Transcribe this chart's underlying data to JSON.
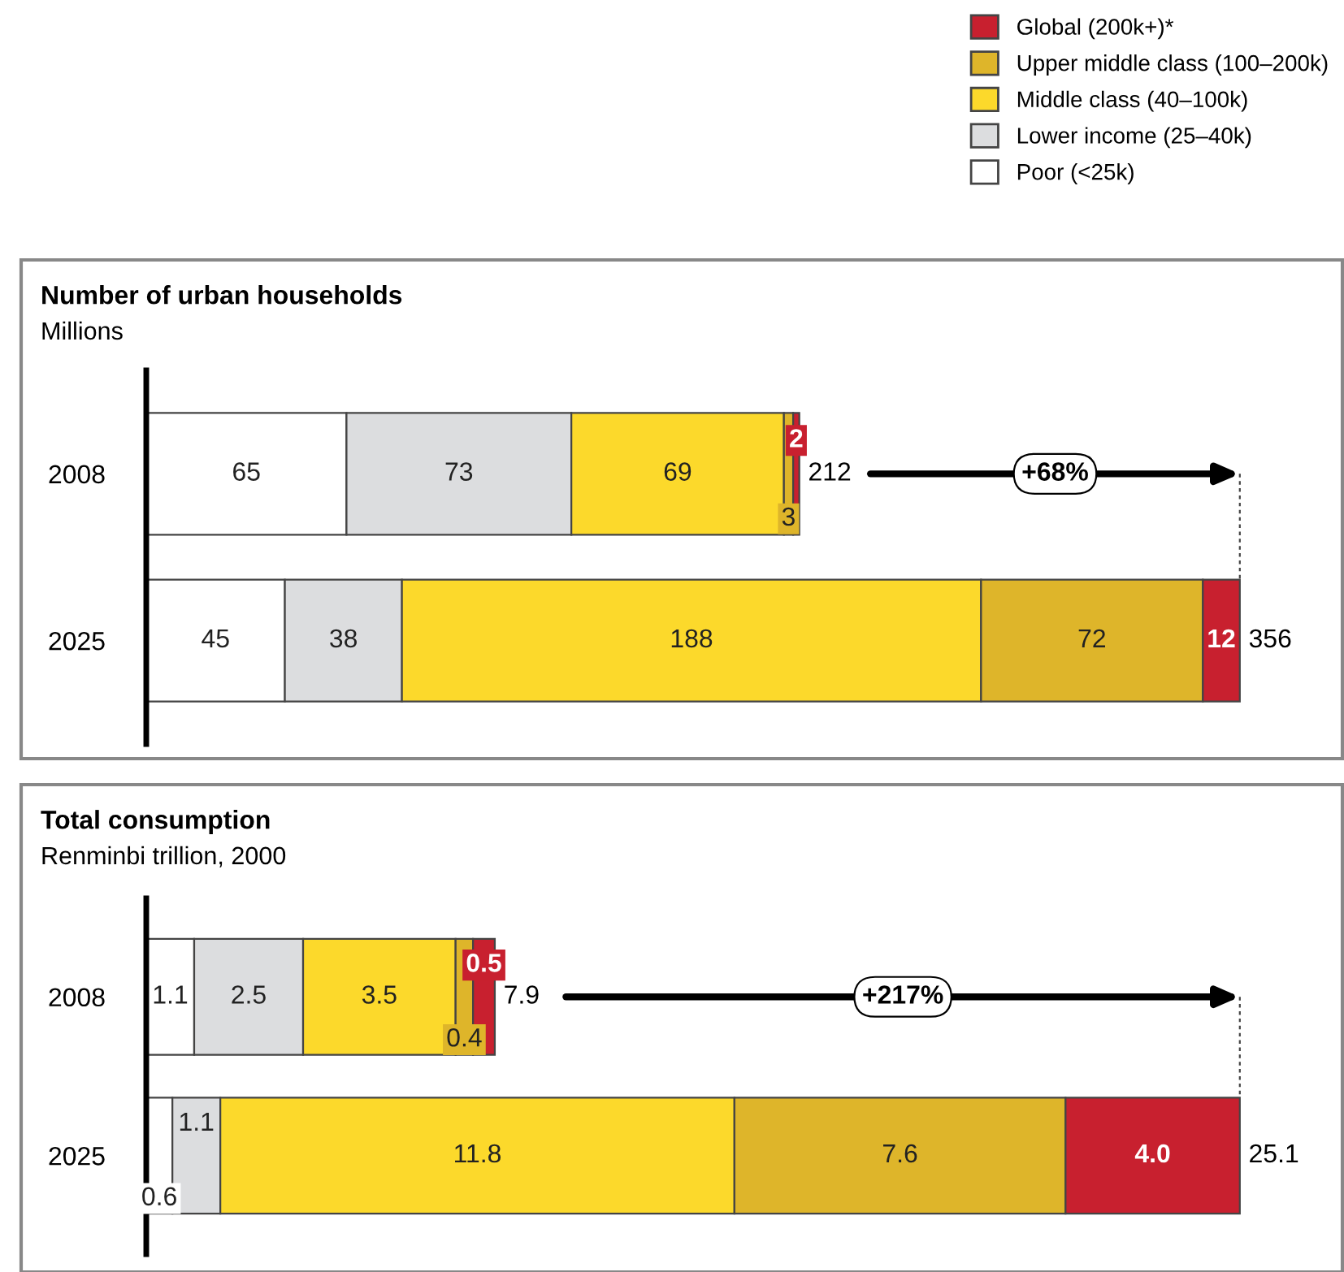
{
  "chart_data": [
    {
      "type": "bar",
      "orientation": "horizontal",
      "stacked": true,
      "title": "Number of urban households",
      "subtitle": "Millions",
      "categories": [
        "2008",
        "2025"
      ],
      "data_labels": true,
      "totals": [
        "212",
        "356"
      ],
      "annotations": [
        "+68%"
      ],
      "legend": "top right",
      "grid": false,
      "series": [
        {
          "name": "Poor (<25k)",
          "color": "#ffffff",
          "values": [
            65,
            45
          ]
        },
        {
          "name": "Lower income (25–40k)",
          "color": "#dcdddf",
          "values": [
            73,
            38
          ]
        },
        {
          "name": "Middle class (40–100k)",
          "color": "#fcd92b",
          "values": [
            69,
            188
          ]
        },
        {
          "name": "Upper middle class (100–200k)",
          "color": "#deb52a",
          "values": [
            3,
            72
          ]
        },
        {
          "name": "Global (200k+)*",
          "color": "#c8202f",
          "values": [
            2,
            12
          ]
        }
      ]
    },
    {
      "type": "bar",
      "orientation": "horizontal",
      "stacked": true,
      "title": "Total consumption",
      "subtitle": "Renminbi trillion, 2000",
      "categories": [
        "2008",
        "2025"
      ],
      "data_labels": true,
      "totals": [
        "7.9",
        "25.1"
      ],
      "annotations": [
        "+217%"
      ],
      "grid": false,
      "series": [
        {
          "color": "#ffffff",
          "values": [
            1.1,
            0.6
          ]
        },
        {
          "color": "#dcdddf",
          "values": [
            2.5,
            1.1
          ]
        },
        {
          "color": "#fcd92b",
          "values": [
            3.5,
            11.8
          ]
        },
        {
          "color": "#deb52a",
          "values": [
            0.4,
            7.6
          ]
        },
        {
          "color": "#c8202f",
          "values": [
            0.5,
            4.0
          ],
          "value_labels": [
            "0.5",
            "4.0"
          ]
        }
      ]
    }
  ]
}
